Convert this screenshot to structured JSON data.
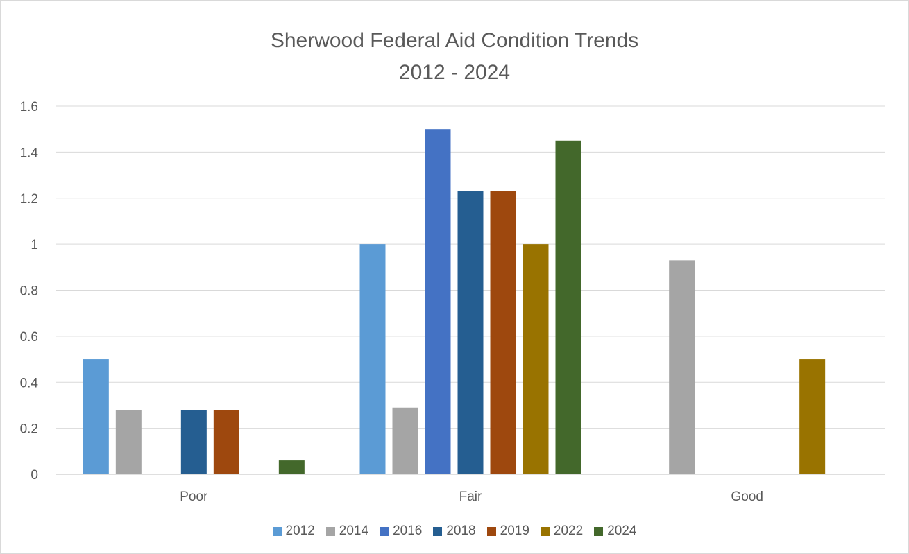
{
  "chart_data": {
    "type": "bar",
    "title": "Sherwood Federal Aid Condition Trends",
    "subtitle": "2012 - 2024",
    "categories": [
      "Poor",
      "Fair",
      "Good"
    ],
    "series": [
      {
        "name": "2012",
        "color": "#5b9bd5",
        "values": [
          0.5,
          1.0,
          0
        ]
      },
      {
        "name": "2014",
        "color": "#a5a5a5",
        "values": [
          0.28,
          0.29,
          0.93
        ]
      },
      {
        "name": "2016",
        "color": "#4472c4",
        "values": [
          0,
          1.5,
          0
        ]
      },
      {
        "name": "2018",
        "color": "#255e91",
        "values": [
          0.28,
          1.23,
          0
        ]
      },
      {
        "name": "2019",
        "color": "#9e480e",
        "values": [
          0.28,
          1.23,
          0
        ]
      },
      {
        "name": "2022",
        "color": "#997300",
        "values": [
          0,
          1.0,
          0.5
        ]
      },
      {
        "name": "2024",
        "color": "#43682b",
        "values": [
          0.06,
          1.45,
          0
        ]
      }
    ],
    "ylim": [
      0,
      1.6
    ],
    "yticks": [
      "0",
      "0.2",
      "0.4",
      "0.6",
      "0.8",
      "1",
      "1.2",
      "1.4",
      "1.6"
    ],
    "xlabel": "",
    "ylabel": "",
    "grid": true,
    "legend_position": "bottom"
  }
}
